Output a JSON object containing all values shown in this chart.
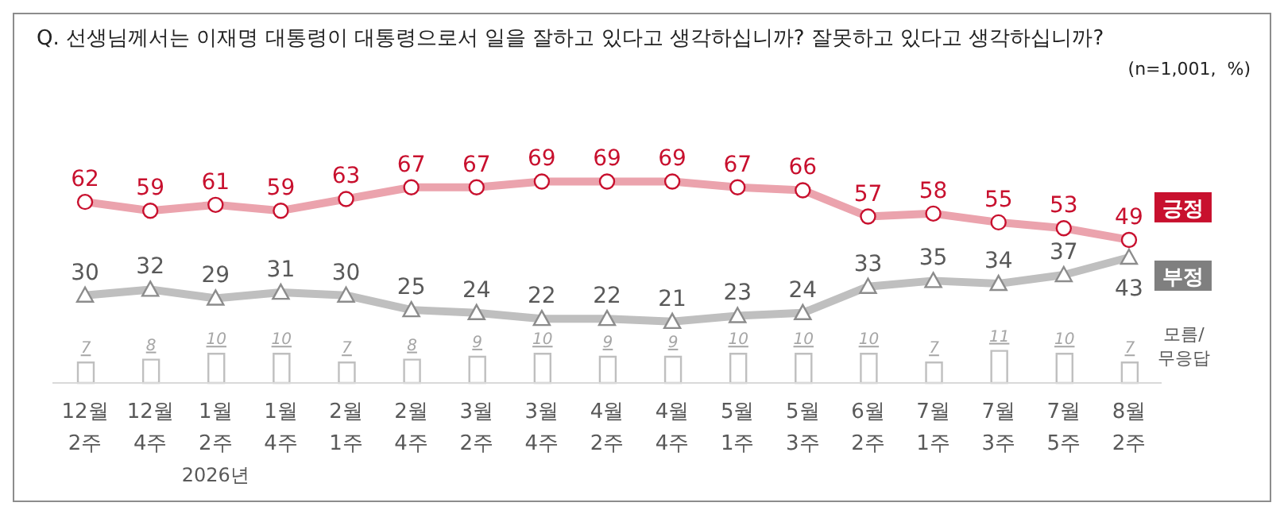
{
  "chart_data": {
    "type": "line",
    "title": "Q. 선생님께서는 이재명 대통령이 대통령으로서 일을 잘하고 있다고 생각하십니까? 잘못하고 있다고 생각하십니까?",
    "annotations": [
      "(n=1,001,  %)",
      "2026년"
    ],
    "categories": [
      "12월 2주",
      "12월 4주",
      "1월 2주",
      "1월 4주",
      "2월 1주",
      "2월 4주",
      "3월 2주",
      "3월 4주",
      "4월 2주",
      "4월 4주",
      "5월 1주",
      "5월 3주",
      "6월 2주",
      "7월 1주",
      "7월 3주",
      "7월 5주",
      "8월 2주"
    ],
    "series": [
      {
        "name": "긍정",
        "color": "#eba3ad",
        "marker": "circle",
        "values": [
          62,
          59,
          61,
          59,
          63,
          67,
          67,
          69,
          69,
          69,
          67,
          66,
          57,
          58,
          55,
          53,
          49
        ]
      },
      {
        "name": "부정",
        "color": "#bfbfbf",
        "marker": "triangle",
        "values": [
          30,
          32,
          29,
          31,
          30,
          25,
          24,
          22,
          22,
          21,
          23,
          24,
          33,
          35,
          34,
          37,
          43
        ]
      },
      {
        "name": "모름/무응답",
        "type": "bar",
        "color": "#bfbfbf",
        "values": [
          7,
          8,
          10,
          10,
          7,
          8,
          9,
          10,
          9,
          9,
          10,
          10,
          10,
          7,
          11,
          10,
          7
        ]
      }
    ],
    "data_labels": true,
    "grid": false,
    "legend": "right"
  }
}
